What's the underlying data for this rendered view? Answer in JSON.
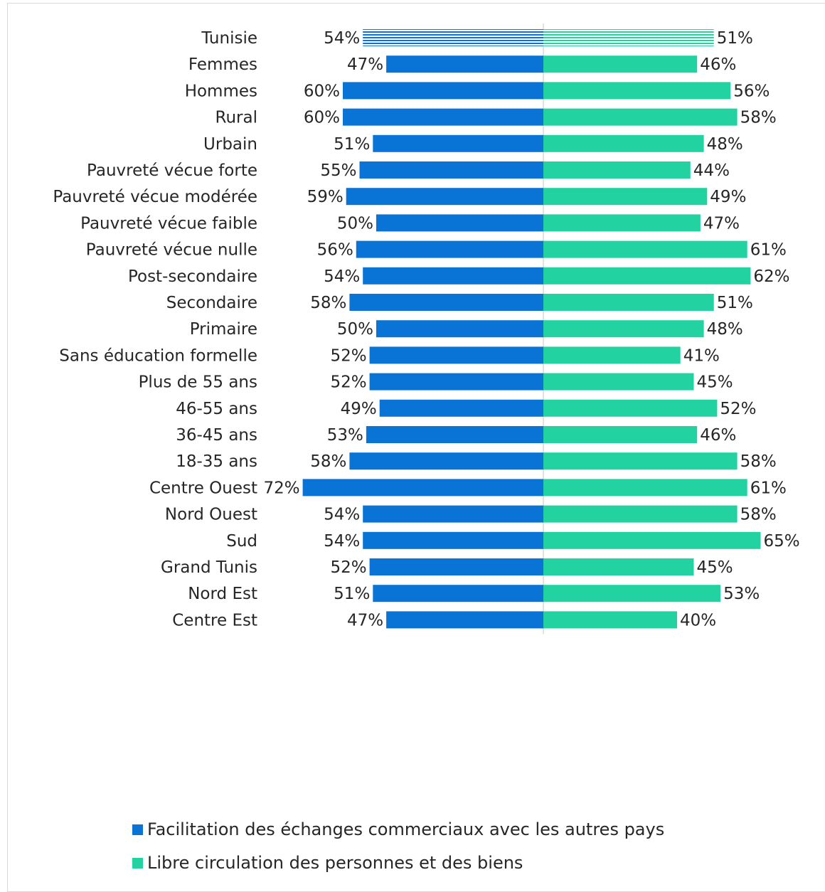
{
  "chart_data": {
    "type": "bar",
    "orientation": "diverging-horizontal",
    "xlim": [
      0,
      100
    ],
    "series": [
      {
        "name": "Facilitation des échanges commerciaux avec les autres pays",
        "color": "#0a74d6",
        "side": "left"
      },
      {
        "name": "Libre circulation des personnes et des biens",
        "color": "#22d3a1",
        "side": "right"
      }
    ],
    "groups": [
      [
        {
          "category": "Tunisie",
          "left": 54,
          "right": 51,
          "hatched": true
        }
      ],
      [
        {
          "category": "Femmes",
          "left": 47,
          "right": 46
        },
        {
          "category": "Hommes",
          "left": 60,
          "right": 56
        }
      ],
      [
        {
          "category": "Rural",
          "left": 60,
          "right": 58
        },
        {
          "category": "Urbain",
          "left": 51,
          "right": 48
        }
      ],
      [
        {
          "category": "Pauvreté vécue forte",
          "left": 55,
          "right": 44
        },
        {
          "category": "Pauvreté vécue modérée",
          "left": 59,
          "right": 49
        },
        {
          "category": "Pauvreté vécue faible",
          "left": 50,
          "right": 47
        },
        {
          "category": "Pauvreté vécue nulle",
          "left": 56,
          "right": 61
        }
      ],
      [
        {
          "category": "Post-secondaire",
          "left": 54,
          "right": 62
        },
        {
          "category": "Secondaire",
          "left": 58,
          "right": 51
        },
        {
          "category": "Primaire",
          "left": 50,
          "right": 48
        },
        {
          "category": "Sans éducation formelle",
          "left": 52,
          "right": 41
        }
      ],
      [
        {
          "category": "Plus de 55 ans",
          "left": 52,
          "right": 45
        },
        {
          "category": "46-55 ans",
          "left": 49,
          "right": 52
        },
        {
          "category": "36-45 ans",
          "left": 53,
          "right": 46
        },
        {
          "category": "18-35 ans",
          "left": 58,
          "right": 58
        }
      ],
      [
        {
          "category": "Centre Ouest",
          "left": 72,
          "right": 61
        },
        {
          "category": "Nord Ouest",
          "left": 54,
          "right": 58
        },
        {
          "category": "Sud",
          "left": 54,
          "right": 65
        },
        {
          "category": "Grand Tunis",
          "left": 52,
          "right": 45
        },
        {
          "category": "Nord Est",
          "left": 51,
          "right": 53
        },
        {
          "category": "Centre Est",
          "left": 47,
          "right": 40
        }
      ]
    ],
    "legend": {
      "position": "bottom-left"
    }
  }
}
